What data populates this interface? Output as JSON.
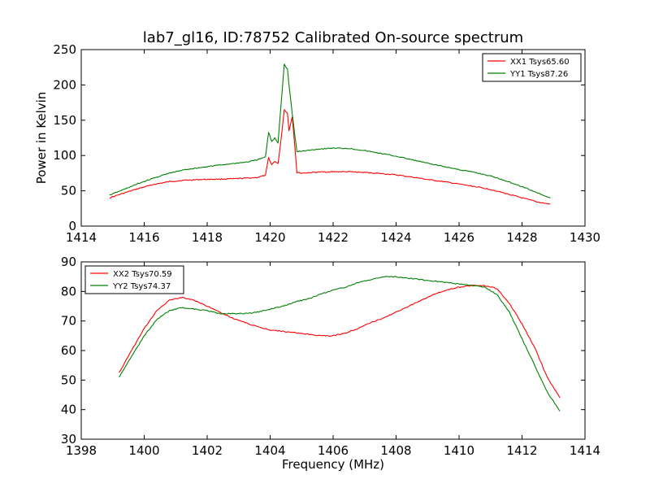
{
  "figure": {
    "title": "lab7_gl16, ID:78752 Calibrated On-source spectrum"
  },
  "chart_data": [
    {
      "type": "line",
      "title": "lab7_gl16, ID:78752 Calibrated On-source spectrum",
      "xlabel": "",
      "ylabel": "Power in Kelvin",
      "xlim": [
        1414,
        1430
      ],
      "ylim": [
        0,
        250
      ],
      "xticks": [
        1414,
        1416,
        1418,
        1420,
        1422,
        1424,
        1426,
        1428,
        1430
      ],
      "yticks": [
        0,
        50,
        100,
        150,
        200,
        250
      ],
      "legend_position": "top-right",
      "grid": false,
      "series": [
        {
          "name": "XX1 Tsys65.60",
          "color": "#ff0000",
          "x": [
            1414.9,
            1415.3,
            1415.8,
            1416.3,
            1416.8,
            1417.3,
            1417.8,
            1418.3,
            1418.8,
            1419.3,
            1419.6,
            1419.85,
            1419.95,
            1420.05,
            1420.15,
            1420.25,
            1420.35,
            1420.45,
            1420.55,
            1420.6,
            1420.7,
            1420.78,
            1420.85,
            1421.0,
            1421.5,
            1422.0,
            1422.5,
            1423.0,
            1423.5,
            1424.0,
            1424.5,
            1425.0,
            1425.5,
            1426.0,
            1426.5,
            1427.0,
            1427.5,
            1428.0,
            1428.5,
            1428.9
          ],
          "y": [
            40,
            46,
            53,
            59,
            63,
            65,
            66,
            66.5,
            67,
            68,
            69,
            72,
            97,
            87,
            92,
            88,
            125,
            165,
            160,
            135,
            155,
            115,
            76,
            75,
            76.5,
            77,
            77,
            76,
            74.5,
            72.5,
            69.5,
            66,
            63,
            59.5,
            56,
            52,
            46,
            40,
            34,
            31
          ]
        },
        {
          "name": "YY1 Tsys87.26",
          "color": "#008000",
          "x": [
            1414.9,
            1415.3,
            1415.8,
            1416.3,
            1416.8,
            1417.3,
            1417.8,
            1418.3,
            1418.8,
            1419.3,
            1419.6,
            1419.85,
            1419.95,
            1420.05,
            1420.15,
            1420.25,
            1420.35,
            1420.45,
            1420.55,
            1420.6,
            1420.7,
            1420.78,
            1420.85,
            1421.0,
            1421.5,
            1422.0,
            1422.5,
            1423.0,
            1423.5,
            1424.0,
            1424.5,
            1425.0,
            1425.5,
            1426.0,
            1426.5,
            1427.0,
            1427.5,
            1428.0,
            1428.5,
            1428.9
          ],
          "y": [
            44,
            51,
            60,
            68,
            75,
            80,
            83,
            86,
            88.5,
            91,
            94,
            98,
            133,
            120,
            125,
            118,
            175,
            229,
            222,
            200,
            160,
            130,
            106,
            106,
            109,
            110.5,
            110,
            107,
            103,
            99,
            94,
            89,
            84.5,
            80,
            76,
            71,
            64,
            56,
            47,
            40
          ]
        }
      ]
    },
    {
      "type": "line",
      "title": "",
      "xlabel": "Frequency (MHz)",
      "ylabel": "",
      "xlim": [
        1398,
        1414
      ],
      "ylim": [
        30,
        90
      ],
      "xticks": [
        1398,
        1400,
        1402,
        1404,
        1406,
        1408,
        1410,
        1412,
        1414
      ],
      "yticks": [
        30,
        40,
        50,
        60,
        70,
        80,
        90
      ],
      "legend_position": "top-left",
      "grid": false,
      "series": [
        {
          "name": "XX2 Tsys70.59",
          "color": "#ff0000",
          "x": [
            1399.2,
            1399.6,
            1400.0,
            1400.4,
            1400.8,
            1401.2,
            1401.6,
            1402.0,
            1402.4,
            1402.8,
            1403.2,
            1403.6,
            1404.0,
            1404.4,
            1404.8,
            1405.2,
            1405.6,
            1406.0,
            1406.4,
            1406.8,
            1407.2,
            1407.6,
            1408.0,
            1408.4,
            1408.8,
            1409.2,
            1409.6,
            1410.0,
            1410.4,
            1410.8,
            1411.2,
            1411.6,
            1412.0,
            1412.4,
            1412.8,
            1413.2
          ],
          "y": [
            52.5,
            60,
            67.5,
            73.5,
            77,
            78,
            77,
            75,
            73,
            71,
            69.5,
            68,
            67,
            66.5,
            66,
            65.5,
            65,
            65,
            66,
            67.5,
            69.5,
            71,
            73,
            75,
            77,
            79,
            80.5,
            81.5,
            82,
            82,
            81,
            76,
            69,
            61,
            51,
            44
          ]
        },
        {
          "name": "YY2 Tsys74.37",
          "color": "#008000",
          "x": [
            1399.2,
            1399.6,
            1400.0,
            1400.4,
            1400.8,
            1401.2,
            1401.6,
            1402.0,
            1402.4,
            1402.8,
            1403.2,
            1403.6,
            1404.0,
            1404.4,
            1404.8,
            1405.2,
            1405.6,
            1406.0,
            1406.4,
            1406.8,
            1407.2,
            1407.6,
            1408.0,
            1408.4,
            1408.8,
            1409.2,
            1409.6,
            1410.0,
            1410.4,
            1410.8,
            1411.2,
            1411.6,
            1412.0,
            1412.4,
            1412.8,
            1413.2
          ],
          "y": [
            51,
            58,
            65,
            70.5,
            73.5,
            74.5,
            74,
            73.5,
            72.5,
            72.5,
            72.5,
            73,
            74,
            75,
            76.5,
            77.5,
            79,
            80.5,
            81.5,
            83,
            84,
            85,
            85,
            84.5,
            84,
            83.5,
            83,
            82.5,
            82,
            81.5,
            79,
            73,
            64,
            55,
            46,
            39.5
          ]
        }
      ]
    }
  ]
}
